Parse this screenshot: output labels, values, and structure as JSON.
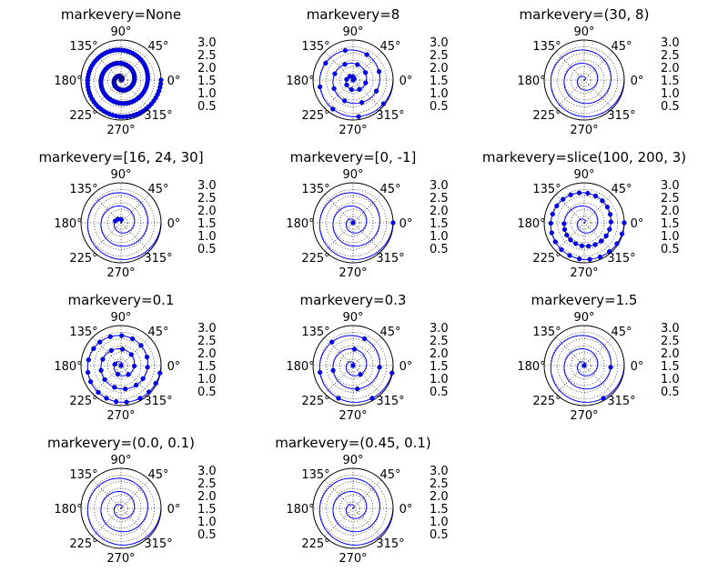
{
  "chart_data": [
    {
      "type": "line",
      "projection": "polar",
      "title": "markevery=None",
      "markevery": null
    },
    {
      "type": "line",
      "projection": "polar",
      "title": "markevery=8",
      "markevery": 8
    },
    {
      "type": "line",
      "projection": "polar",
      "title": "markevery=(30, 8)",
      "markevery": [
        30,
        8
      ]
    },
    {
      "type": "line",
      "projection": "polar",
      "title": "markevery=[16, 24, 30]",
      "markevery": {
        "list": [
          16,
          24,
          30
        ]
      }
    },
    {
      "type": "line",
      "projection": "polar",
      "title": "markevery=[0, -1]",
      "markevery": {
        "list": [
          0,
          -1
        ]
      }
    },
    {
      "type": "line",
      "projection": "polar",
      "title": "markevery=slice(100, 200, 3)",
      "markevery": {
        "slice": [
          100,
          200,
          3
        ]
      }
    },
    {
      "type": "line",
      "projection": "polar",
      "title": "markevery=0.1",
      "markevery": 0.1
    },
    {
      "type": "line",
      "projection": "polar",
      "title": "markevery=0.3",
      "markevery": 0.3
    },
    {
      "type": "line",
      "projection": "polar",
      "title": "markevery=1.5",
      "markevery": 1.5
    },
    {
      "type": "line",
      "projection": "polar",
      "title": "markevery=(0.0, 0.1)",
      "markevery": [
        0.0,
        0.1
      ]
    },
    {
      "type": "line",
      "projection": "polar",
      "title": "markevery=(0.45, 0.1)",
      "markevery": [
        0.45,
        0.1
      ]
    }
  ],
  "series_definition": {
    "r_range": [
      0,
      3.0
    ],
    "points": 200,
    "theta": "2*pi*r"
  },
  "angle_tick_labels": [
    "0°",
    "45°",
    "90°",
    "135°",
    "180°",
    "225°",
    "270°",
    "315°"
  ],
  "radial_tick_labels": [
    "0.5",
    "1.0",
    "1.5",
    "2.0",
    "2.5",
    "3.0"
  ],
  "rlim": [
    0,
    3.0
  ],
  "grid": true,
  "colors": {
    "line": "#0000ff",
    "marker": "#0000ff",
    "marker_edge": "#000080"
  }
}
